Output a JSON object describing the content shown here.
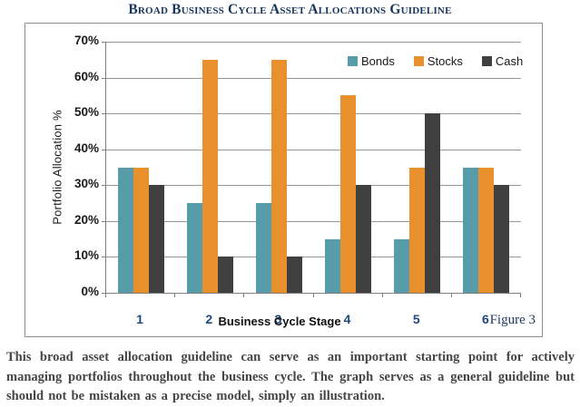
{
  "title": "Broad Business Cycle Asset Allocations Guideline",
  "figure_label": "Figure 3",
  "caption": "This broad asset allocation guideline can serve as an important starting point for actively managing portfolios throughout the business cycle. The graph serves as a general guideline but should not be mistaken as a precise model, simply an illustration.",
  "colors": {
    "title_text": "#17365D",
    "x_tick_labels": "#1F497D",
    "figure_label_text": "#1F3864",
    "caption_text": "#464646",
    "gridline": "#969696",
    "chart_border": "#8F8F8F"
  },
  "chart_data": {
    "type": "bar",
    "title": "",
    "categories": [
      "1",
      "2",
      "3",
      "4",
      "5",
      "6"
    ],
    "series": [
      {
        "name": "Bonds",
        "color": "#579DA9",
        "values": [
          35,
          25,
          25,
          15,
          15,
          35
        ]
      },
      {
        "name": "Stocks",
        "color": "#E8912C",
        "values": [
          35,
          65,
          65,
          55,
          35,
          35
        ]
      },
      {
        "name": "Cash",
        "color": "#3F3F3F",
        "values": [
          30,
          10,
          10,
          30,
          50,
          30
        ]
      }
    ],
    "xlabel": "Business Cycle Stage",
    "ylabel": "Portfolio Allocation %",
    "ylim": [
      0,
      70
    ],
    "ytick_step": 10,
    "ytick_labels": [
      "0%",
      "10%",
      "20%",
      "30%",
      "40%",
      "50%",
      "60%",
      "70%"
    ],
    "grid": true,
    "legend_position": "top-right-inside"
  }
}
